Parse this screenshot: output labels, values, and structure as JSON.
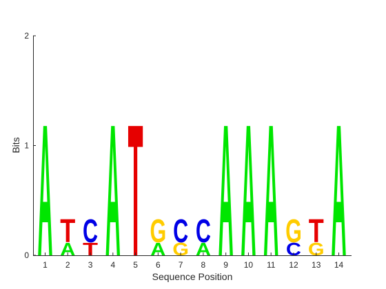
{
  "chart_data": {
    "type": "sequence-logo",
    "xlabel": "Sequence Position",
    "ylabel": "Bits",
    "ylim": [
      0,
      2
    ],
    "yticks": [
      0,
      1,
      2
    ],
    "grid": false,
    "colors": {
      "A": "#00e600",
      "C": "#0000e6",
      "G": "#ffcc00",
      "T": "#e60000"
    },
    "positions": [
      {
        "label": "1",
        "stack": [
          {
            "letter": "A",
            "height": 1.25
          }
        ]
      },
      {
        "label": "2",
        "stack": [
          {
            "letter": "A",
            "height": 0.12
          },
          {
            "letter": "T",
            "height": 0.22
          }
        ]
      },
      {
        "label": "3",
        "stack": [
          {
            "letter": "T",
            "height": 0.12
          },
          {
            "letter": "C",
            "height": 0.22
          }
        ]
      },
      {
        "label": "4",
        "stack": [
          {
            "letter": "A",
            "height": 1.25
          }
        ]
      },
      {
        "label": "5",
        "stack": [
          {
            "letter": "T",
            "height": 1.25
          }
        ]
      },
      {
        "label": "6",
        "stack": [
          {
            "letter": "A",
            "height": 0.12
          },
          {
            "letter": "G",
            "height": 0.22
          }
        ]
      },
      {
        "label": "7",
        "stack": [
          {
            "letter": "G",
            "height": 0.12
          },
          {
            "letter": "C",
            "height": 0.22
          }
        ]
      },
      {
        "label": "8",
        "stack": [
          {
            "letter": "A",
            "height": 0.12
          },
          {
            "letter": "C",
            "height": 0.22
          }
        ]
      },
      {
        "label": "9",
        "stack": [
          {
            "letter": "A",
            "height": 1.25
          }
        ]
      },
      {
        "label": "10",
        "stack": [
          {
            "letter": "A",
            "height": 1.25
          }
        ]
      },
      {
        "label": "11",
        "stack": [
          {
            "letter": "A",
            "height": 1.25
          }
        ]
      },
      {
        "label": "12",
        "stack": [
          {
            "letter": "C",
            "height": 0.12
          },
          {
            "letter": "G",
            "height": 0.22
          }
        ]
      },
      {
        "label": "13",
        "stack": [
          {
            "letter": "G",
            "height": 0.12
          },
          {
            "letter": "T",
            "height": 0.22
          }
        ]
      },
      {
        "label": "14",
        "stack": [
          {
            "letter": "A",
            "height": 1.25
          }
        ]
      }
    ]
  }
}
